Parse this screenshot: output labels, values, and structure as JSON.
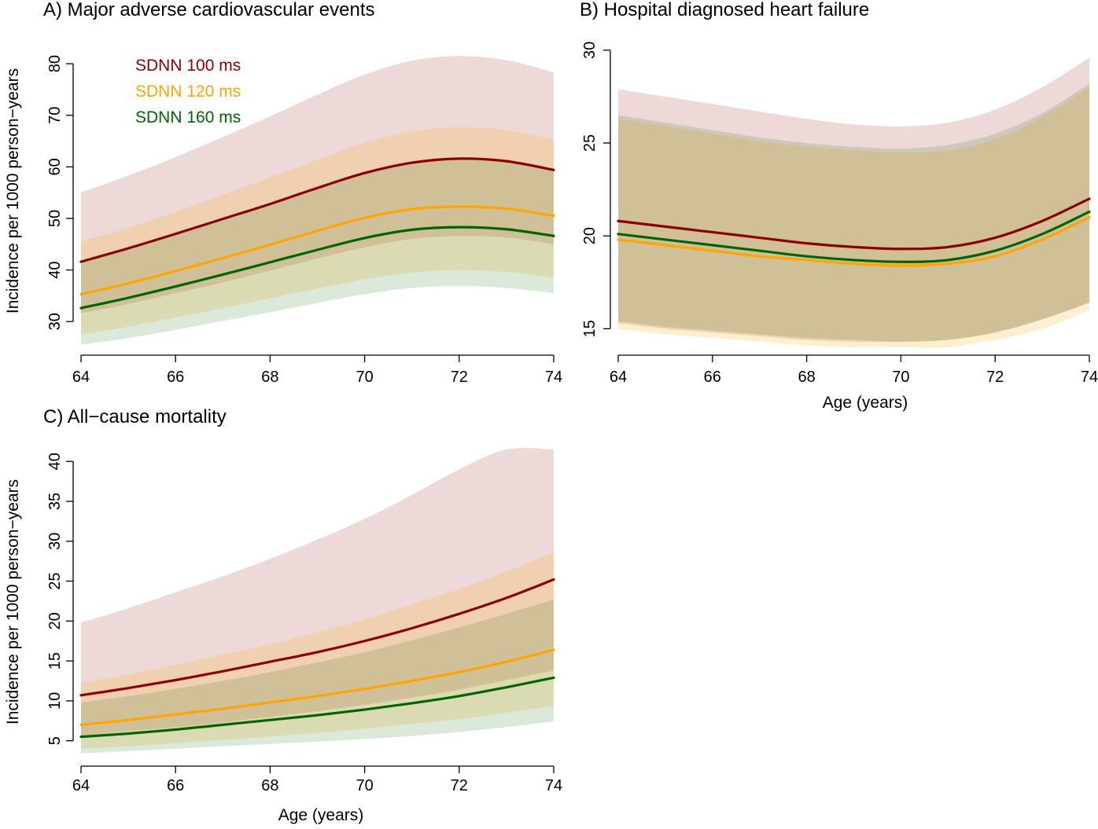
{
  "colors": {
    "SDNN 100 ms": "#8b0000",
    "SDNN 120 ms": "#ffa500",
    "SDNN 160 ms": "#006400"
  },
  "chart_data": [
    {
      "type": "line",
      "title": "A) Major adverse cardiovascular events",
      "xlabel": "",
      "ylabel": "Incidence per 1000 person−years",
      "xlim": [
        64,
        74
      ],
      "ylim": [
        25,
        82
      ],
      "xticks": [
        64,
        66,
        68,
        70,
        72,
        74
      ],
      "xtick_labels": [
        "64",
        "66",
        "68",
        "70",
        "72",
        "74"
      ],
      "yticks": [
        30,
        40,
        50,
        60,
        70,
        80
      ],
      "ytick_labels": [
        "30",
        "40",
        "50",
        "60",
        "70",
        "80"
      ],
      "legend": [
        "SDNN 100 ms",
        "SDNN 120 ms",
        "SDNN 160 ms"
      ],
      "legend_position": "top-left",
      "x": [
        64,
        65,
        66,
        67,
        68,
        69,
        70,
        71,
        72,
        73,
        74
      ],
      "series": [
        {
          "name": "SDNN 100 ms",
          "color": "#8b0000",
          "values": [
            41.6,
            44.2,
            47.0,
            49.9,
            52.8,
            55.9,
            58.8,
            60.8,
            61.6,
            61.1,
            59.4
          ],
          "lower": [
            31.6,
            33.4,
            35.5,
            37.6,
            39.9,
            42.2,
            44.4,
            46.0,
            46.6,
            46.3,
            45.0
          ],
          "upper": [
            55.0,
            58.3,
            61.9,
            65.8,
            69.8,
            74.0,
            77.9,
            80.6,
            81.5,
            80.7,
            78.3
          ]
        },
        {
          "name": "SDNN 120 ms",
          "color": "#ffa500",
          "values": [
            35.3,
            37.4,
            39.8,
            42.3,
            44.9,
            47.6,
            50.1,
            51.8,
            52.3,
            51.9,
            50.5
          ],
          "lower": [
            27.5,
            29.0,
            30.8,
            32.6,
            34.5,
            36.4,
            38.2,
            39.5,
            40.0,
            39.6,
            38.5
          ],
          "upper": [
            45.5,
            48.2,
            51.3,
            54.6,
            57.9,
            61.4,
            64.7,
            66.9,
            67.7,
            67.1,
            65.3
          ]
        },
        {
          "name": "SDNN 160 ms",
          "color": "#006400",
          "values": [
            32.6,
            34.6,
            36.8,
            39.1,
            41.5,
            43.9,
            46.2,
            47.8,
            48.3,
            47.9,
            46.6
          ],
          "lower": [
            25.5,
            26.8,
            28.4,
            30.1,
            31.8,
            33.6,
            35.3,
            36.5,
            36.9,
            36.5,
            35.5
          ],
          "upper": [
            41.7,
            44.1,
            47.0,
            49.9,
            53.0,
            56.1,
            59.0,
            61.0,
            61.7,
            61.1,
            59.4
          ]
        }
      ]
    },
    {
      "type": "line",
      "title": "B) Hospital diagnosed heart failure",
      "xlabel": "Age (years)",
      "ylabel": "",
      "xlim": [
        64,
        74
      ],
      "ylim": [
        14,
        30.5
      ],
      "xticks": [
        64,
        66,
        68,
        70,
        72,
        74
      ],
      "xtick_labels": [
        "64",
        "66",
        "68",
        "70",
        "72",
        "74"
      ],
      "yticks": [
        15,
        20,
        25,
        30
      ],
      "ytick_labels": [
        "15",
        "20",
        "25",
        "30"
      ],
      "x": [
        64,
        65,
        66,
        67,
        68,
        69,
        70,
        71,
        72,
        73,
        74
      ],
      "series": [
        {
          "name": "SDNN 100 ms",
          "color": "#8b0000",
          "values": [
            20.8,
            20.5,
            20.2,
            19.9,
            19.6,
            19.4,
            19.3,
            19.4,
            19.9,
            20.8,
            22.0
          ],
          "lower": [
            15.3,
            15.0,
            14.8,
            14.6,
            14.4,
            14.3,
            14.3,
            14.4,
            14.8,
            15.5,
            16.4
          ],
          "upper": [
            27.9,
            27.5,
            27.1,
            26.7,
            26.3,
            26.0,
            25.9,
            26.1,
            26.8,
            28.0,
            29.6
          ]
        },
        {
          "name": "SDNN 120 ms",
          "color": "#ffa500",
          "values": [
            19.8,
            19.5,
            19.2,
            18.9,
            18.7,
            18.5,
            18.4,
            18.5,
            18.9,
            19.8,
            21.0
          ],
          "lower": [
            15.0,
            14.7,
            14.5,
            14.3,
            14.1,
            14.0,
            13.9,
            14.0,
            14.4,
            15.0,
            16.0
          ],
          "upper": [
            26.3,
            25.9,
            25.5,
            25.1,
            24.8,
            24.6,
            24.5,
            24.6,
            25.2,
            26.4,
            28.0
          ]
        },
        {
          "name": "SDNN 160 ms",
          "color": "#006400",
          "values": [
            20.1,
            19.8,
            19.5,
            19.2,
            18.9,
            18.7,
            18.6,
            18.7,
            19.2,
            20.1,
            21.3
          ],
          "lower": [
            15.4,
            15.1,
            14.9,
            14.7,
            14.5,
            14.4,
            14.3,
            14.4,
            14.8,
            15.5,
            16.4
          ],
          "upper": [
            26.5,
            26.1,
            25.7,
            25.3,
            25.0,
            24.8,
            24.7,
            24.9,
            25.5,
            26.6,
            28.2
          ]
        }
      ]
    },
    {
      "type": "line",
      "title": "C) All−cause mortality",
      "xlabel": "Age (years)",
      "ylabel": "Incidence per 1000 person−years",
      "xlim": [
        64,
        74
      ],
      "ylim": [
        3,
        41.5
      ],
      "xticks": [
        64,
        66,
        68,
        70,
        72,
        74
      ],
      "xtick_labels": [
        "64",
        "66",
        "68",
        "70",
        "72",
        "74"
      ],
      "yticks": [
        5,
        10,
        15,
        20,
        25,
        30,
        35,
        40
      ],
      "ytick_labels": [
        "5",
        "10",
        "15",
        "20",
        "25",
        "30",
        "35",
        "40"
      ],
      "x": [
        64,
        65,
        66,
        67,
        68,
        69,
        70,
        71,
        72,
        73,
        74
      ],
      "series": [
        {
          "name": "SDNN 100 ms",
          "color": "#8b0000",
          "values": [
            10.7,
            11.6,
            12.6,
            13.7,
            14.9,
            16.1,
            17.5,
            19.1,
            20.9,
            22.9,
            25.2
          ],
          "lower": [
            5.7,
            6.2,
            6.7,
            7.3,
            8.0,
            8.7,
            9.5,
            10.4,
            11.4,
            12.6,
            13.8
          ],
          "upper": [
            19.8,
            21.6,
            23.6,
            25.6,
            27.8,
            30.2,
            32.8,
            35.8,
            39.0,
            41.5,
            41.5
          ]
        },
        {
          "name": "SDNN 120 ms",
          "color": "#ffa500",
          "values": [
            7.0,
            7.6,
            8.3,
            9.0,
            9.8,
            10.6,
            11.5,
            12.5,
            13.6,
            14.9,
            16.4
          ],
          "lower": [
            4.0,
            4.3,
            4.7,
            5.1,
            5.5,
            6.0,
            6.5,
            7.1,
            7.7,
            8.5,
            9.4
          ],
          "upper": [
            12.3,
            13.3,
            14.5,
            15.8,
            17.1,
            18.6,
            20.2,
            22.1,
            24.0,
            26.2,
            28.6
          ]
        },
        {
          "name": "SDNN 160 ms",
          "color": "#006400",
          "values": [
            5.5,
            5.9,
            6.4,
            7.0,
            7.6,
            8.2,
            8.9,
            9.7,
            10.6,
            11.7,
            12.9
          ],
          "lower": [
            3.4,
            3.7,
            4.0,
            4.3,
            4.6,
            4.9,
            5.2,
            5.6,
            6.1,
            6.7,
            7.4
          ],
          "upper": [
            9.8,
            10.6,
            11.5,
            12.5,
            13.6,
            14.8,
            16.1,
            17.6,
            19.2,
            20.9,
            22.7
          ]
        }
      ]
    }
  ]
}
